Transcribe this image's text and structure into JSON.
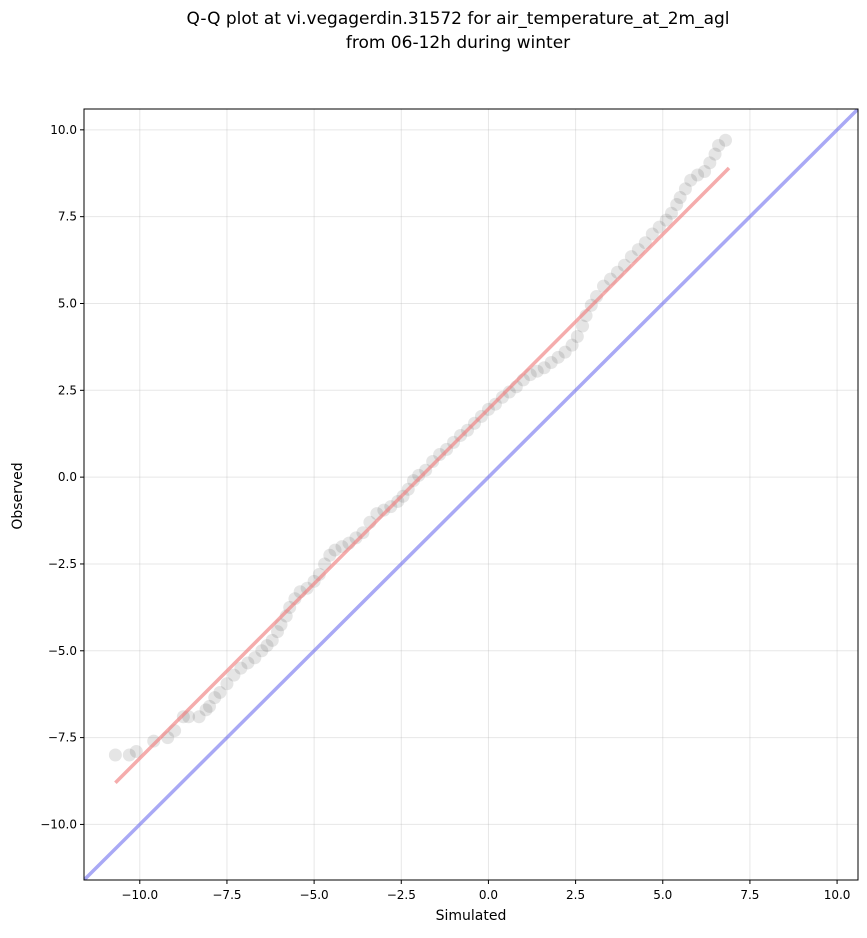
{
  "chart_data": {
    "type": "scatter",
    "title": "Q-Q plot at vi.vegagerdin.31572 for air_temperature_at_2m_agl",
    "subtitle": "from 06-12h during winter",
    "xlabel": "Simulated",
    "ylabel": "Observed",
    "xlim": [
      -11.6,
      10.6
    ],
    "ylim": [
      -11.6,
      10.6
    ],
    "xticks": [
      -10.0,
      -7.5,
      -5.0,
      -2.5,
      0.0,
      2.5,
      5.0,
      7.5,
      10.0
    ],
    "yticks": [
      -10.0,
      -7.5,
      -5.0,
      -2.5,
      0.0,
      2.5,
      5.0,
      7.5,
      10.0
    ],
    "xtick_labels": [
      "−10.0",
      "−7.5",
      "−5.0",
      "−2.5",
      "0.0",
      "2.5",
      "5.0",
      "7.5",
      "10.0"
    ],
    "ytick_labels": [
      "−10.0",
      "−7.5",
      "−5.0",
      "−2.5",
      "0.0",
      "2.5",
      "5.0",
      "7.5",
      "10.0"
    ],
    "grid": true,
    "series": [
      {
        "kind": "points",
        "color": "#000000",
        "opacity": 0.1,
        "points": [
          [
            -10.7,
            -8.0
          ],
          [
            -10.3,
            -8.0
          ],
          [
            -10.1,
            -7.9
          ],
          [
            -9.6,
            -7.6
          ],
          [
            -9.2,
            -7.5
          ],
          [
            -9.0,
            -7.3
          ],
          [
            -8.75,
            -6.9
          ],
          [
            -8.6,
            -6.9
          ],
          [
            -8.3,
            -6.9
          ],
          [
            -8.1,
            -6.7
          ],
          [
            -8.0,
            -6.6
          ],
          [
            -7.85,
            -6.35
          ],
          [
            -7.7,
            -6.2
          ],
          [
            -7.5,
            -5.95
          ],
          [
            -7.3,
            -5.7
          ],
          [
            -7.1,
            -5.5
          ],
          [
            -6.9,
            -5.35
          ],
          [
            -6.7,
            -5.2
          ],
          [
            -6.5,
            -5.0
          ],
          [
            -6.35,
            -4.85
          ],
          [
            -6.2,
            -4.7
          ],
          [
            -6.05,
            -4.45
          ],
          [
            -5.95,
            -4.25
          ],
          [
            -5.8,
            -4.0
          ],
          [
            -5.7,
            -3.75
          ],
          [
            -5.55,
            -3.5
          ],
          [
            -5.4,
            -3.3
          ],
          [
            -5.2,
            -3.2
          ],
          [
            -5.0,
            -3.0
          ],
          [
            -4.85,
            -2.8
          ],
          [
            -4.7,
            -2.5
          ],
          [
            -4.55,
            -2.25
          ],
          [
            -4.4,
            -2.1
          ],
          [
            -4.2,
            -2.0
          ],
          [
            -4.0,
            -1.9
          ],
          [
            -3.8,
            -1.75
          ],
          [
            -3.6,
            -1.6
          ],
          [
            -3.4,
            -1.3
          ],
          [
            -3.2,
            -1.05
          ],
          [
            -3.0,
            -0.95
          ],
          [
            -2.8,
            -0.85
          ],
          [
            -2.6,
            -0.7
          ],
          [
            -2.45,
            -0.55
          ],
          [
            -2.3,
            -0.35
          ],
          [
            -2.15,
            -0.1
          ],
          [
            -2.0,
            0.05
          ],
          [
            -1.8,
            0.2
          ],
          [
            -1.6,
            0.45
          ],
          [
            -1.4,
            0.65
          ],
          [
            -1.2,
            0.8
          ],
          [
            -1.0,
            1.0
          ],
          [
            -0.8,
            1.2
          ],
          [
            -0.6,
            1.35
          ],
          [
            -0.4,
            1.55
          ],
          [
            -0.2,
            1.75
          ],
          [
            0.0,
            1.95
          ],
          [
            0.2,
            2.1
          ],
          [
            0.4,
            2.3
          ],
          [
            0.6,
            2.45
          ],
          [
            0.8,
            2.6
          ],
          [
            1.0,
            2.8
          ],
          [
            1.2,
            2.95
          ],
          [
            1.4,
            3.05
          ],
          [
            1.6,
            3.15
          ],
          [
            1.8,
            3.3
          ],
          [
            2.0,
            3.45
          ],
          [
            2.2,
            3.6
          ],
          [
            2.4,
            3.8
          ],
          [
            2.55,
            4.05
          ],
          [
            2.7,
            4.35
          ],
          [
            2.8,
            4.65
          ],
          [
            2.95,
            4.95
          ],
          [
            3.1,
            5.2
          ],
          [
            3.3,
            5.5
          ],
          [
            3.5,
            5.7
          ],
          [
            3.7,
            5.9
          ],
          [
            3.9,
            6.1
          ],
          [
            4.1,
            6.35
          ],
          [
            4.3,
            6.55
          ],
          [
            4.5,
            6.75
          ],
          [
            4.7,
            7.0
          ],
          [
            4.9,
            7.2
          ],
          [
            5.1,
            7.4
          ],
          [
            5.25,
            7.6
          ],
          [
            5.4,
            7.85
          ],
          [
            5.5,
            8.05
          ],
          [
            5.65,
            8.3
          ],
          [
            5.8,
            8.55
          ],
          [
            6.0,
            8.7
          ],
          [
            6.2,
            8.8
          ],
          [
            6.35,
            9.05
          ],
          [
            6.5,
            9.3
          ],
          [
            6.6,
            9.55
          ],
          [
            6.8,
            9.7
          ]
        ]
      },
      {
        "kind": "line",
        "color": "#f08080",
        "opacity": 0.65,
        "points": [
          [
            -10.7,
            -8.8
          ],
          [
            6.9,
            8.9
          ]
        ]
      },
      {
        "kind": "line",
        "color": "#6f6fee",
        "opacity": 0.6,
        "points": [
          [
            -11.6,
            -11.6
          ],
          [
            10.6,
            10.6
          ]
        ]
      }
    ]
  }
}
